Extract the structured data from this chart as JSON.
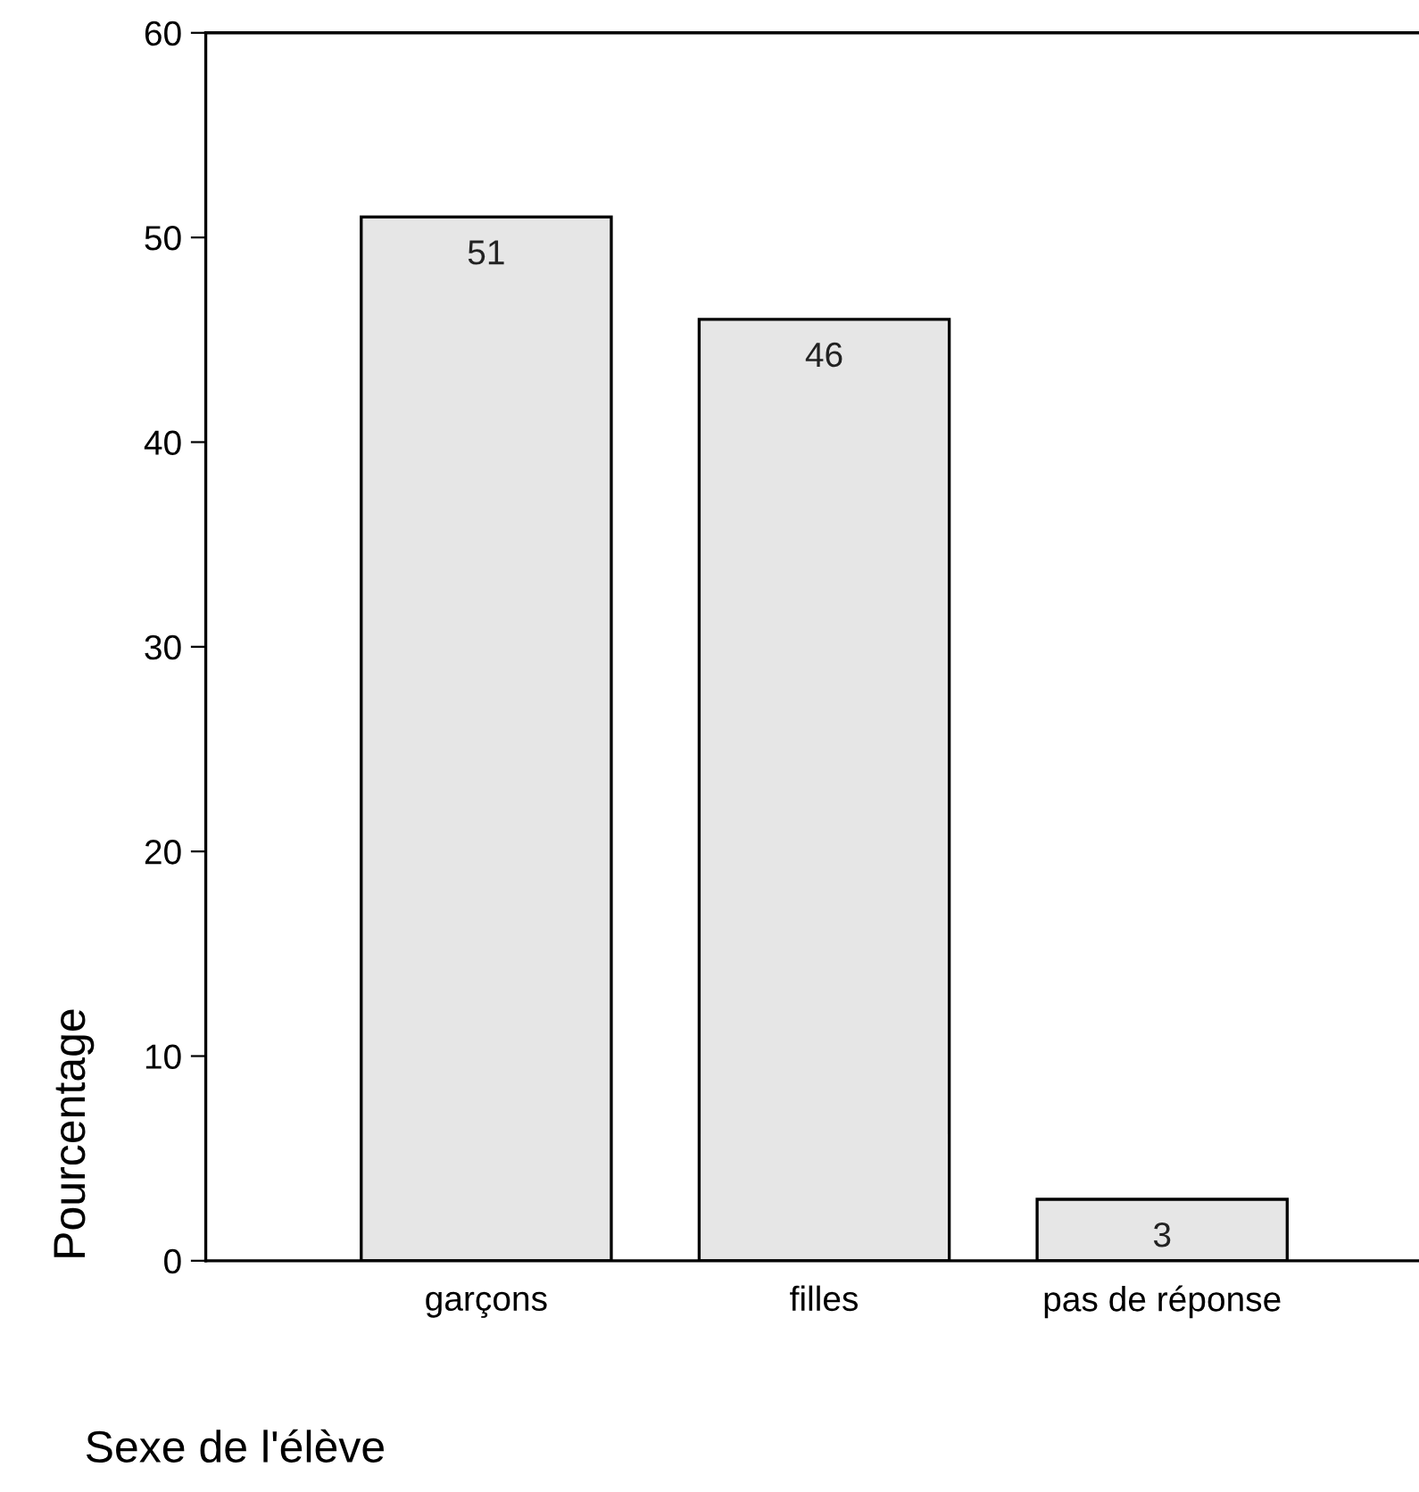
{
  "chart_data": {
    "type": "bar",
    "xlabel": "Sexe de l'élève",
    "ylabel": "Pourcentage",
    "categories": [
      "garçons",
      "filles",
      "pas de réponse"
    ],
    "values": [
      51,
      46,
      3
    ],
    "color": "#e6e6e6",
    "ylim": [
      0,
      60
    ],
    "yticks": [
      0,
      10,
      20,
      30,
      40,
      50,
      60
    ],
    "data_labels": true,
    "grid": false,
    "legend": false
  }
}
